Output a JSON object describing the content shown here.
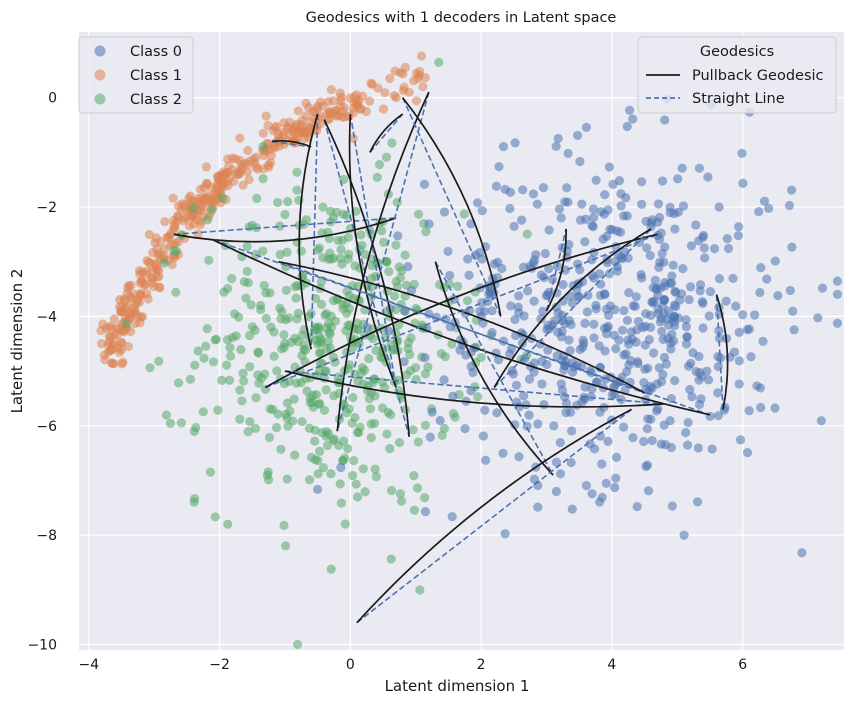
{
  "chart_data": {
    "type": "scatter",
    "title": "Geodesics with 1 decoders in Latent space",
    "xlabel": "Latent dimension 1",
    "ylabel": "Latent dimension 2",
    "xlim": [
      -4.15,
      7.55
    ],
    "ylim": [
      -10.1,
      1.2
    ],
    "xticks": [
      -4,
      -2,
      0,
      2,
      4,
      6
    ],
    "yticks": [
      0,
      -2,
      -4,
      -6,
      -8,
      -10
    ],
    "xtick_labels": [
      "−4",
      "−2",
      "0",
      "2",
      "4",
      "6"
    ],
    "ytick_labels": [
      "0",
      "−2",
      "−4",
      "−6",
      "−8",
      "−10"
    ],
    "grid": true,
    "background": "#eaeaf2",
    "series": [
      {
        "name": "Class 0",
        "color": "#4c72b0",
        "marker": "circle",
        "approx_count": 600,
        "center": [
          4.0,
          -4.0
        ],
        "spread": [
          1.4,
          1.5
        ]
      },
      {
        "name": "Class 1",
        "color": "#dd8452",
        "marker": "circle",
        "approx_count": 400,
        "shape": "arc",
        "arc_path": [
          [
            -3.7,
            -4.7
          ],
          [
            -3.2,
            -3.5
          ],
          [
            -2.6,
            -2.3
          ],
          [
            -2.0,
            -1.6
          ],
          [
            -1.2,
            -0.9
          ],
          [
            -0.4,
            -0.3
          ],
          [
            0.4,
            0.1
          ],
          [
            1.3,
            0.5
          ]
        ]
      },
      {
        "name": "Class 2",
        "color": "#55a868",
        "marker": "circle",
        "approx_count": 500,
        "center": [
          -0.3,
          -4.5
        ],
        "spread": [
          1.0,
          1.5
        ]
      }
    ],
    "geodesic_pairs": [
      {
        "start": [
          -2.7,
          -2.5
        ],
        "end": [
          0.7,
          -2.2
        ]
      },
      {
        "start": [
          -1.2,
          -0.8
        ],
        "end": [
          -0.6,
          -0.9
        ]
      },
      {
        "start": [
          -0.5,
          -0.3
        ],
        "end": [
          -0.6,
          -4.6
        ]
      },
      {
        "start": [
          -0.4,
          -0.4
        ],
        "end": [
          0.9,
          -6.2
        ]
      },
      {
        "start": [
          0.0,
          -0.3
        ],
        "end": [
          0.7,
          -5.3
        ]
      },
      {
        "start": [
          0.3,
          -1.0
        ],
        "end": [
          0.8,
          -0.3
        ]
      },
      {
        "start": [
          1.2,
          0.1
        ],
        "end": [
          -0.2,
          -6.1
        ]
      },
      {
        "start": [
          0.8,
          0.0
        ],
        "end": [
          2.3,
          -4.0
        ]
      },
      {
        "start": [
          -2.1,
          -2.6
        ],
        "end": [
          5.5,
          -5.8
        ]
      },
      {
        "start": [
          -1.3,
          -5.3
        ],
        "end": [
          4.7,
          -2.5
        ]
      },
      {
        "start": [
          -1.0,
          -5.0
        ],
        "end": [
          4.8,
          -5.6
        ]
      },
      {
        "start": [
          -1.1,
          -3.0
        ],
        "end": [
          4.5,
          -5.4
        ]
      },
      {
        "start": [
          1.3,
          -3.0
        ],
        "end": [
          3.1,
          -6.9
        ]
      },
      {
        "start": [
          0.1,
          -9.6
        ],
        "end": [
          4.3,
          -5.7
        ]
      },
      {
        "start": [
          5.7,
          -5.7
        ],
        "end": [
          5.6,
          -3.6
        ]
      },
      {
        "start": [
          2.2,
          -5.3
        ],
        "end": [
          4.6,
          -2.4
        ]
      },
      {
        "start": [
          3.0,
          -3.9
        ],
        "end": [
          3.3,
          -2.4
        ]
      }
    ],
    "legend_classes": {
      "placement": "upper-left",
      "entries": [
        "Class 0",
        "Class 1",
        "Class 2"
      ]
    },
    "legend_geodesics": {
      "placement": "upper-right",
      "title": "Geodesics",
      "entries": [
        {
          "label": "Pullback Geodesic",
          "color": "#1a1a1a",
          "style": "solid"
        },
        {
          "label": "Straight Line",
          "color": "#4c72b0",
          "style": "dashed"
        }
      ]
    }
  }
}
